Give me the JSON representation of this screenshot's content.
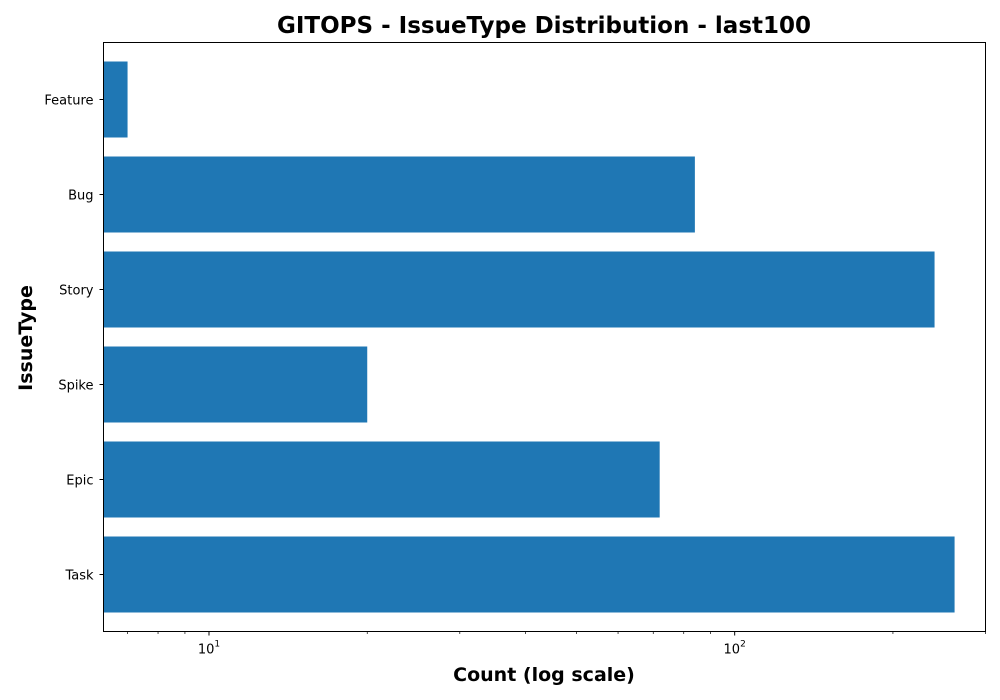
{
  "chart_data": {
    "type": "bar",
    "orientation": "horizontal",
    "title": "GITOPS - IssueType Distribution - last100",
    "xlabel": "Count (log scale)",
    "ylabel": "IssueType",
    "x_scale": "log",
    "xlim": [
      6.3,
      300
    ],
    "x_ticks": [
      {
        "value": 10,
        "base": "10",
        "exp": "1"
      },
      {
        "value": 100,
        "base": "10",
        "exp": "2"
      }
    ],
    "categories": [
      "Task",
      "Epic",
      "Spike",
      "Story",
      "Bug",
      "Feature"
    ],
    "values": [
      262,
      72,
      20,
      240,
      84,
      7
    ],
    "bar_color": "#1f77b4",
    "grid": false,
    "legend": "none"
  }
}
